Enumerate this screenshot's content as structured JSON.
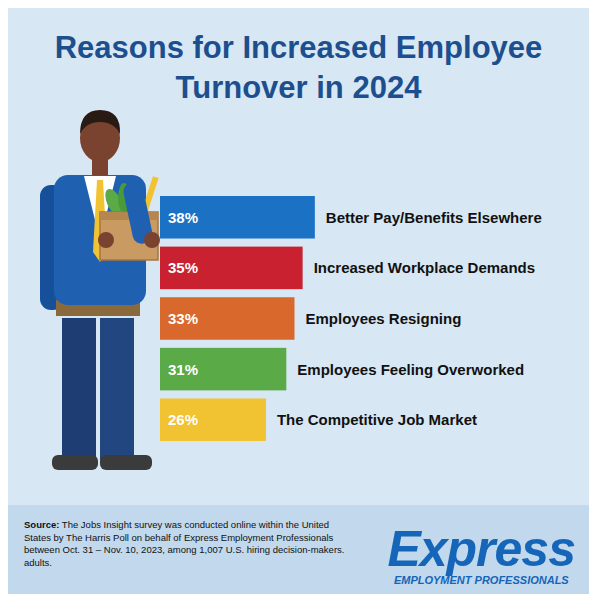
{
  "chart_data": {
    "type": "bar",
    "orientation": "horizontal",
    "title": "Reasons for Increased Employee Turnover in 2024",
    "categories": [
      "Better Pay/Benefits Elsewhere",
      "Increased Workplace Demands",
      "Employees Resigning",
      "Employees Feeling Overworked",
      "The Competitive Job Market"
    ],
    "values": [
      38,
      35,
      33,
      31,
      26
    ],
    "value_labels": [
      "38%",
      "35%",
      "33%",
      "31%",
      "26%"
    ],
    "colors": [
      "#1b72c4",
      "#c9212f",
      "#d8682b",
      "#5aab48",
      "#f1c231"
    ],
    "xlim": [
      0,
      40
    ],
    "data_labels": true,
    "tick_labels": false,
    "grid": false
  },
  "footer": {
    "source_label": "Source:",
    "source": "The Jobs Insight survey was conducted online within the United States by The Harris Poll on behalf of Express Employment Professionals between Oct. 31 – Nov. 10, 2023, among 1,007 U.S. hiring decision-makers. adults.",
    "brand": "Express",
    "brand_tagline": "EMPLOYMENT PROFESSIONALS"
  }
}
